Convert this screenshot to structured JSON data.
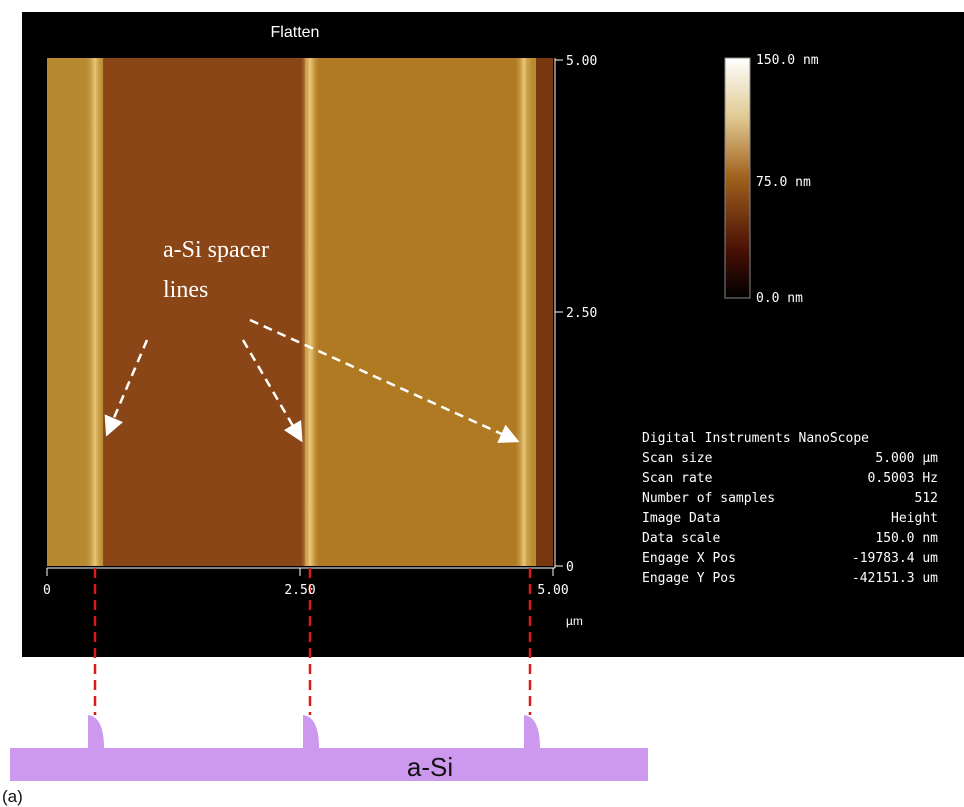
{
  "figure": {
    "title": "Flatten",
    "x_axis": {
      "ticks": [
        "0",
        "2.50",
        "5.00"
      ],
      "unit": "µm"
    },
    "y_axis": {
      "ticks": [
        "5.00",
        "2.50",
        "0"
      ]
    },
    "colorbar": {
      "labels": [
        "150.0 nm",
        "75.0 nm",
        "0.0 nm"
      ]
    },
    "annotation": [
      "a-Si spacer",
      "lines"
    ],
    "info": {
      "header": "Digital Instruments NanoScope",
      "rows": [
        [
          "Scan size",
          "5.000 µm"
        ],
        [
          "Scan rate",
          "0.5003 Hz"
        ],
        [
          "Number of samples",
          "512"
        ],
        [
          "Image Data",
          "Height"
        ],
        [
          "Data scale",
          "150.0 nm"
        ],
        [
          "Engage X Pos",
          "-19783.4 um"
        ],
        [
          "Engage Y Pos",
          "-42151.3 um"
        ]
      ]
    }
  },
  "diagram": {
    "label": "a-Si"
  },
  "panel_label": "(a)"
}
